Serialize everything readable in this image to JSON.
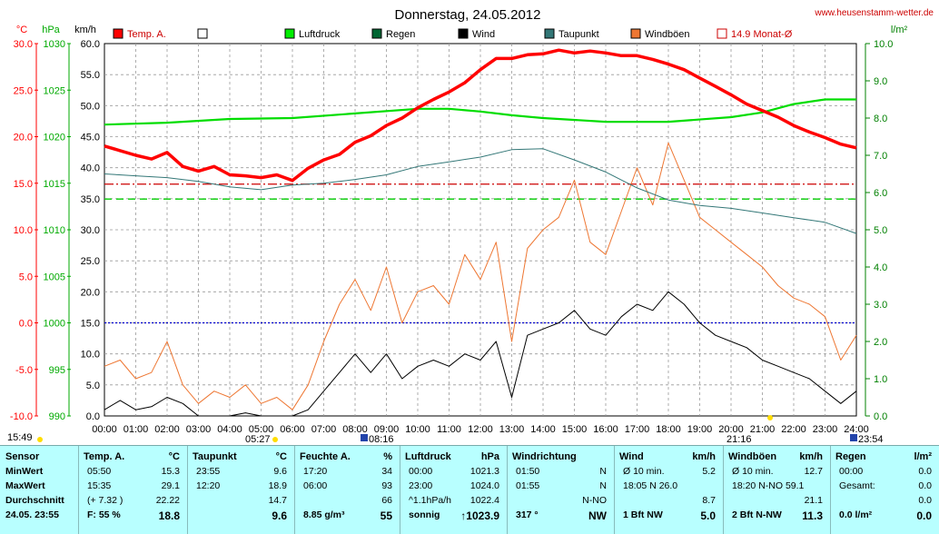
{
  "chart_data": {
    "type": "line",
    "title": "Donnerstag, 24.05.2012",
    "site": "www.heusenstamm-wetter.de",
    "x_ticks": [
      "00:00",
      "01:00",
      "02:00",
      "03:00",
      "04:00",
      "05:00",
      "06:00",
      "07:00",
      "08:00",
      "09:00",
      "10:00",
      "11:00",
      "12:00",
      "13:00",
      "14:00",
      "15:00",
      "16:00",
      "17:00",
      "18:00",
      "19:00",
      "20:00",
      "21:00",
      "22:00",
      "23:00",
      "24:00"
    ],
    "axes": {
      "temp": {
        "unit": "°C",
        "ticks": [
          "30.0",
          "25.0",
          "20.0",
          "15.0",
          "10.0",
          "5.0",
          "0.0",
          "-5.0",
          "-10.0"
        ],
        "range": [
          -10,
          30
        ],
        "color": "#ff0000"
      },
      "press": {
        "unit": "hPa",
        "ticks": [
          "1030",
          "1025",
          "1020",
          "1015",
          "1010",
          "1005",
          "1000",
          "995",
          "990"
        ],
        "range": [
          990,
          1030
        ],
        "color": "#00aa00"
      },
      "wind": {
        "unit": "km/h",
        "ticks": [
          "60.0",
          "55.0",
          "50.0",
          "45.0",
          "40.0",
          "35.0",
          "30.0",
          "25.0",
          "20.0",
          "15.0",
          "10.0",
          "5.0",
          "0.0"
        ],
        "range": [
          0,
          60
        ],
        "color": "#000000"
      },
      "rain": {
        "unit": "l/m²",
        "ticks": [
          "10.0",
          "9.0",
          "8.0",
          "7.0",
          "6.0",
          "5.0",
          "4.0",
          "3.0",
          "2.0",
          "1.0",
          "0.0"
        ],
        "range": [
          0,
          10
        ],
        "color": "#008000"
      }
    },
    "legend": [
      {
        "name": "Temp. A.",
        "color": "#ff0000"
      },
      {
        "name": "",
        "color": "#ffffff"
      },
      {
        "name": "Luftdruck",
        "color": "#00ee00"
      },
      {
        "name": "Regen",
        "color": "#006633"
      },
      {
        "name": "Wind",
        "color": "#000000"
      },
      {
        "name": "Taupunkt",
        "color": "#337777"
      },
      {
        "name": "Windböen",
        "color": "#ee7733"
      },
      {
        "name": "14.9 Monat-Ø",
        "color": "#cc0000"
      }
    ],
    "series": [
      {
        "name": "Temp. A.",
        "axis": "temp",
        "color": "#ff0000",
        "x": [
          0,
          0.5,
          1,
          1.5,
          2,
          2.5,
          3,
          3.5,
          4,
          4.5,
          5,
          5.5,
          6,
          6.5,
          7,
          7.5,
          8,
          8.5,
          9,
          9.5,
          10,
          10.5,
          11,
          11.5,
          12,
          12.5,
          13,
          13.5,
          14,
          14.5,
          15,
          15.5,
          16,
          16.5,
          17,
          17.5,
          18,
          18.5,
          19,
          19.5,
          20,
          20.5,
          21,
          21.5,
          22,
          22.5,
          23,
          23.5,
          24
        ],
        "y": [
          19,
          18.5,
          18,
          17.6,
          18.3,
          16.8,
          16.3,
          16.8,
          15.9,
          15.8,
          15.6,
          15.9,
          15.3,
          16.6,
          17.5,
          18.1,
          19.4,
          20.1,
          21.2,
          22,
          23.1,
          24,
          24.8,
          25.8,
          27.2,
          28.4,
          28.4,
          28.8,
          28.9,
          29.3,
          29,
          29.2,
          29,
          28.7,
          28.7,
          28.3,
          27.8,
          27.2,
          26.3,
          25.4,
          24.5,
          23.5,
          22.8,
          22.1,
          21.2,
          20.5,
          19.9,
          19.2,
          18.8
        ]
      },
      {
        "name": "Luftdruck",
        "axis": "press",
        "color": "#00dd00",
        "x": [
          0,
          2,
          4,
          6,
          8,
          10,
          11,
          12,
          13,
          14,
          16,
          18,
          20,
          21,
          22,
          23,
          24
        ],
        "y": [
          1021.3,
          1021.5,
          1021.9,
          1022.0,
          1022.5,
          1023.0,
          1023.0,
          1022.7,
          1022.3,
          1022.0,
          1021.6,
          1021.6,
          1022.1,
          1022.6,
          1023.5,
          1024.0,
          1024.0
        ]
      },
      {
        "name": "Taupunkt",
        "axis": "temp",
        "color": "#337777",
        "x": [
          0,
          1,
          2,
          3,
          4,
          5,
          6,
          7,
          8,
          9,
          10,
          11,
          12,
          13,
          14,
          15,
          16,
          17,
          18,
          19,
          20,
          21,
          22,
          23,
          24
        ],
        "y": [
          16,
          15.8,
          15.6,
          15.2,
          14.6,
          14.3,
          14.8,
          15,
          15.4,
          15.9,
          16.8,
          17.3,
          17.8,
          18.6,
          18.7,
          17.5,
          16.2,
          14.5,
          13.2,
          12.6,
          12.3,
          11.8,
          11.3,
          10.8,
          9.6
        ]
      },
      {
        "name": "Wind",
        "axis": "wind",
        "color": "#000000",
        "x": [
          0,
          0.5,
          1,
          1.5,
          2,
          2.5,
          3,
          3.5,
          4,
          4.5,
          5,
          5.5,
          6,
          6.5,
          7,
          7.5,
          8,
          8.5,
          9,
          9.5,
          10,
          10.5,
          11,
          11.5,
          12,
          12.5,
          13,
          13.5,
          14,
          14.5,
          15,
          15.5,
          16,
          16.5,
          17,
          17.5,
          18,
          18.5,
          19,
          19.5,
          20,
          20.5,
          21,
          21.5,
          22,
          22.5,
          23,
          23.5,
          24
        ],
        "y": [
          1,
          2.5,
          1,
          1.5,
          3,
          2,
          0,
          0,
          0,
          0.5,
          0,
          0,
          0,
          1,
          4,
          7,
          10,
          7,
          10,
          6,
          8,
          9,
          8,
          10,
          9,
          12,
          3,
          13,
          14,
          15,
          17,
          14,
          13,
          16,
          18,
          17,
          20,
          18,
          15,
          13,
          12,
          11,
          9,
          8,
          7,
          6,
          4,
          2,
          4
        ]
      },
      {
        "name": "Windböen",
        "axis": "wind",
        "color": "#ee7733",
        "x": [
          0,
          0.5,
          1,
          1.5,
          2,
          2.5,
          3,
          3.5,
          4,
          4.5,
          5,
          5.5,
          6,
          6.5,
          7,
          7.5,
          8,
          8.5,
          9,
          9.5,
          10,
          10.5,
          11,
          11.5,
          12,
          12.5,
          13,
          13.5,
          14,
          14.5,
          15,
          15.5,
          16,
          16.5,
          17,
          17.5,
          18,
          18.5,
          19,
          19.5,
          20,
          20.5,
          21,
          21.5,
          22,
          22.5,
          23,
          23.5,
          24
        ],
        "y": [
          8,
          9,
          6,
          7,
          12,
          5,
          2,
          4,
          3,
          5,
          2,
          3,
          1,
          5,
          12,
          18,
          22,
          17,
          24,
          15,
          20,
          21,
          18,
          26,
          22,
          28,
          12,
          27,
          30,
          32,
          38,
          28,
          26,
          33,
          40,
          34,
          44,
          38,
          32,
          30,
          28,
          26,
          24,
          21,
          19,
          18,
          16,
          9,
          13
        ]
      }
    ],
    "reference_lines": [
      {
        "name": "14.9 Monat-Ø",
        "axis": "temp",
        "value": 14.9,
        "color": "#cc0000",
        "style": "dash-dot"
      },
      {
        "name": "Druck-Mittel",
        "axis": "press",
        "value": 1013.3,
        "color": "#00cc00",
        "style": "dash"
      },
      {
        "name": "0 °C",
        "axis": "temp",
        "value": 0,
        "color": "#0000cc",
        "style": "dot"
      }
    ],
    "markers": {
      "left_time": "15:49",
      "sunrise": "05:27",
      "moonrise": "08:16",
      "sunset": "21:16",
      "moonset": "23:54"
    }
  },
  "stats": {
    "sensor": {
      "header": "Sensor",
      "rows": [
        "MinWert",
        "MaxWert",
        "Durchschnitt",
        "24.05. 23:55"
      ]
    },
    "temp": {
      "header": "Temp. A.",
      "unit": "°C",
      "r1": [
        "05:50",
        "15.3"
      ],
      "r2": [
        "15:35",
        "29.1"
      ],
      "r3": [
        "(+ 7.32 )",
        "22.22"
      ],
      "r4": [
        "F: 55 %",
        "18.8"
      ]
    },
    "dew": {
      "header": "Taupunkt",
      "unit": "°C",
      "r1": [
        "23:55",
        "9.6"
      ],
      "r2": [
        "12:20",
        "18.9"
      ],
      "r3": [
        "",
        "14.7"
      ],
      "r4": [
        "",
        "9.6"
      ]
    },
    "hum": {
      "header": "Feuchte A.",
      "unit": "%",
      "r1": [
        "17:20",
        "34"
      ],
      "r2": [
        "06:00",
        "93"
      ],
      "r3": [
        "",
        "66"
      ],
      "r4": [
        "8.85 g/m³",
        "55"
      ]
    },
    "press": {
      "header": "Luftdruck",
      "unit": "hPa",
      "r1": [
        "00:00",
        "1021.3"
      ],
      "r2": [
        "23:00",
        "1024.0"
      ],
      "r3": [
        "^1.1hPa/h",
        "1022.4"
      ],
      "r4": [
        "sonnig",
        "↑1023.9"
      ]
    },
    "wdir": {
      "header": "Windrichtung",
      "r1": [
        "01:50",
        "N"
      ],
      "r2": [
        "01:55",
        "N"
      ],
      "r3": [
        "",
        "N-NO"
      ],
      "r4": [
        "317 °",
        "NW"
      ]
    },
    "wind": {
      "header": "Wind",
      "unit": "km/h",
      "r1": [
        "Ø 10 min.",
        "5.2"
      ],
      "r2": [
        "18:05   N 26.0",
        ""
      ],
      "r3": [
        "",
        "8.7"
      ],
      "r4": [
        "1 Bft NW",
        "5.0"
      ]
    },
    "gust": {
      "header": "Windböen",
      "unit": "km/h",
      "r1": [
        "Ø 10 min.",
        "12.7"
      ],
      "r2": [
        "18:20   N-NO 59.1",
        ""
      ],
      "r3": [
        "",
        "21.1"
      ],
      "r4": [
        "2 Bft N-NW",
        "11.3"
      ]
    },
    "rain": {
      "header": "Regen",
      "unit": "l/m²",
      "r1": [
        "00:00",
        "0.0"
      ],
      "r2": [
        "Gesamt:",
        "0.0"
      ],
      "r3": [
        "",
        "0.0"
      ],
      "r4": [
        "0.0 l/m²",
        "0.0"
      ]
    }
  }
}
